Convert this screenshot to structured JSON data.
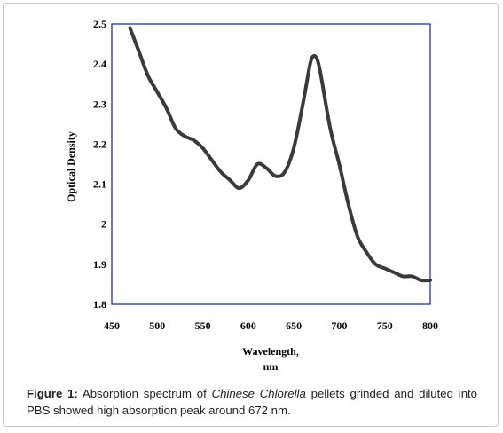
{
  "chart_data": {
    "type": "line",
    "title": "",
    "xlabel": "Wavelength,",
    "xlabel_unit": "nm",
    "ylabel": "Optical Density",
    "xlim": [
      450,
      800
    ],
    "ylim": [
      1.8,
      2.5
    ],
    "x_ticks": [
      {
        "value": 450,
        "label": "450"
      },
      {
        "value": 500,
        "label": "500"
      },
      {
        "value": 550,
        "label": "550"
      },
      {
        "value": 600,
        "label": "600"
      },
      {
        "value": 650,
        "label": "650"
      },
      {
        "value": 700,
        "label": "700"
      },
      {
        "value": 750,
        "label": "750"
      },
      {
        "value": 800,
        "label": "800"
      }
    ],
    "y_ticks": [
      {
        "value": 1.8,
        "label": "1.8"
      },
      {
        "value": 1.9,
        "label": "1.9"
      },
      {
        "value": 2.0,
        "label": "2"
      },
      {
        "value": 2.1,
        "label": "2.1"
      },
      {
        "value": 2.2,
        "label": "2.2"
      },
      {
        "value": 2.3,
        "label": "2.3"
      },
      {
        "value": 2.4,
        "label": "2.4"
      },
      {
        "value": 2.5,
        "label": "2.5"
      }
    ],
    "grid": false,
    "line_color": "#3a3a3a",
    "frame_color": "#1f2fa8",
    "series": [
      {
        "x": [
          470,
          480,
          490,
          500,
          510,
          520,
          530,
          540,
          550,
          560,
          570,
          580,
          590,
          600,
          610,
          620,
          630,
          640,
          650,
          660,
          668,
          672,
          676,
          680,
          690,
          700,
          710,
          720,
          730,
          740,
          750,
          760,
          770,
          780,
          790,
          800
        ],
        "y": [
          2.49,
          2.43,
          2.37,
          2.33,
          2.29,
          2.24,
          2.22,
          2.21,
          2.19,
          2.16,
          2.13,
          2.11,
          2.09,
          2.11,
          2.15,
          2.14,
          2.12,
          2.13,
          2.19,
          2.3,
          2.4,
          2.42,
          2.41,
          2.37,
          2.24,
          2.15,
          2.05,
          1.97,
          1.93,
          1.9,
          1.89,
          1.88,
          1.87,
          1.87,
          1.86,
          1.86
        ]
      }
    ]
  },
  "caption": {
    "figure_label": "Figure 1:",
    "text_before": "Absorption spectrum of",
    "species": "Chinese Chlorella",
    "text_after": "pellets grinded and diluted into PBS showed high absorption peak around 672 nm."
  }
}
